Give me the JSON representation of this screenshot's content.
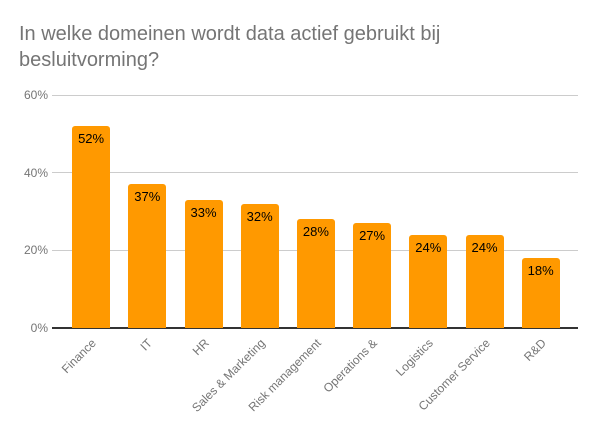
{
  "chart_data": {
    "type": "bar",
    "title": "In welke domeinen wordt data actief gebruikt bij besluitvorming?",
    "categories": [
      "Finance",
      "IT",
      "HR",
      "Sales & Marketing",
      "Risk management",
      "Operations &",
      "Logistics",
      "Customer Service",
      "R&D"
    ],
    "values": [
      52,
      37,
      33,
      32,
      28,
      27,
      24,
      24,
      18
    ],
    "value_labels": [
      "52%",
      "37%",
      "33%",
      "32%",
      "28%",
      "27%",
      "24%",
      "24%",
      "18%"
    ],
    "yticks": [
      {
        "value": 0,
        "label": "0%"
      },
      {
        "value": 20,
        "label": "20%"
      },
      {
        "value": 40,
        "label": "40%"
      },
      {
        "value": 60,
        "label": "60%"
      }
    ],
    "ylim": [
      0,
      60
    ],
    "xlabel": "",
    "ylabel": "",
    "grid": true,
    "legend": "none",
    "colors": {
      "bar": "#FF9900",
      "title_text": "#757575",
      "axis_text": "#757575",
      "value_label_text": "#000000",
      "gridline": "#cccccc",
      "baseline": "#333333",
      "background": "#ffffff"
    }
  }
}
